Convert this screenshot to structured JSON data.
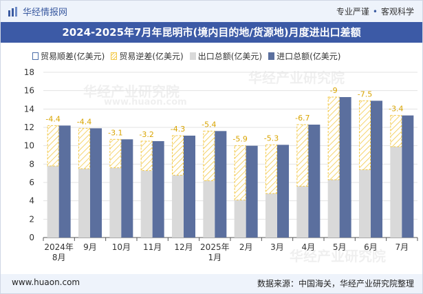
{
  "header": {
    "brand": "华经情报网",
    "tag_1": "专业严谨",
    "tag_2": "客观科学"
  },
  "title": "2024-2025年7月年昆明市(境内目的地/货源地)月度进出口差额",
  "legend": {
    "surplus": "贸易顺差(亿美元)",
    "deficit": "贸易逆差(亿美元)",
    "export": "出口总额(亿美元)",
    "import": "进口总额(亿美元)"
  },
  "footer": {
    "website": "www.huaon.com",
    "source": "数据来源：中国海关，华经产业研究院整理"
  },
  "watermark": {
    "text": "华经产业研究院",
    "url": "www.huaon.com"
  },
  "colors": {
    "export": "#d9d9d9",
    "import": "#5b6f9e",
    "deficit_stroke": "#f3c845",
    "deficit_label": "#d9a400",
    "title_bg": "#3c5aa6"
  },
  "chart_data": {
    "type": "bar",
    "categories": [
      [
        "2024年",
        "8月"
      ],
      [
        "9月"
      ],
      [
        "10月"
      ],
      [
        "11月"
      ],
      [
        "12月"
      ],
      [
        "2025年",
        "1月"
      ],
      [
        "2月"
      ],
      [
        "3月"
      ],
      [
        "4月"
      ],
      [
        "5月"
      ],
      [
        "6月"
      ],
      [
        "7月"
      ]
    ],
    "series": [
      {
        "name": "出口总额(亿美元)",
        "values": [
          7.8,
          7.5,
          7.6,
          7.3,
          6.8,
          6.2,
          4.1,
          4.8,
          5.6,
          6.3,
          7.4,
          9.9
        ]
      },
      {
        "name": "进口总额(亿美元)",
        "values": [
          12.2,
          11.9,
          10.7,
          10.5,
          11.1,
          11.6,
          10.0,
          10.1,
          12.3,
          15.3,
          14.9,
          13.3
        ]
      },
      {
        "name": "贸易逆差(亿美元)",
        "values": [
          -4.4,
          -4.4,
          -3.1,
          -3.2,
          -4.3,
          -5.4,
          -5.9,
          -5.3,
          -6.7,
          -9,
          -7.5,
          -3.4
        ]
      }
    ],
    "ylim": [
      0,
      18
    ],
    "yticks": [
      0,
      2,
      4,
      6,
      8,
      10,
      12,
      14,
      16,
      18
    ],
    "grid": true,
    "legend_position": "top"
  }
}
